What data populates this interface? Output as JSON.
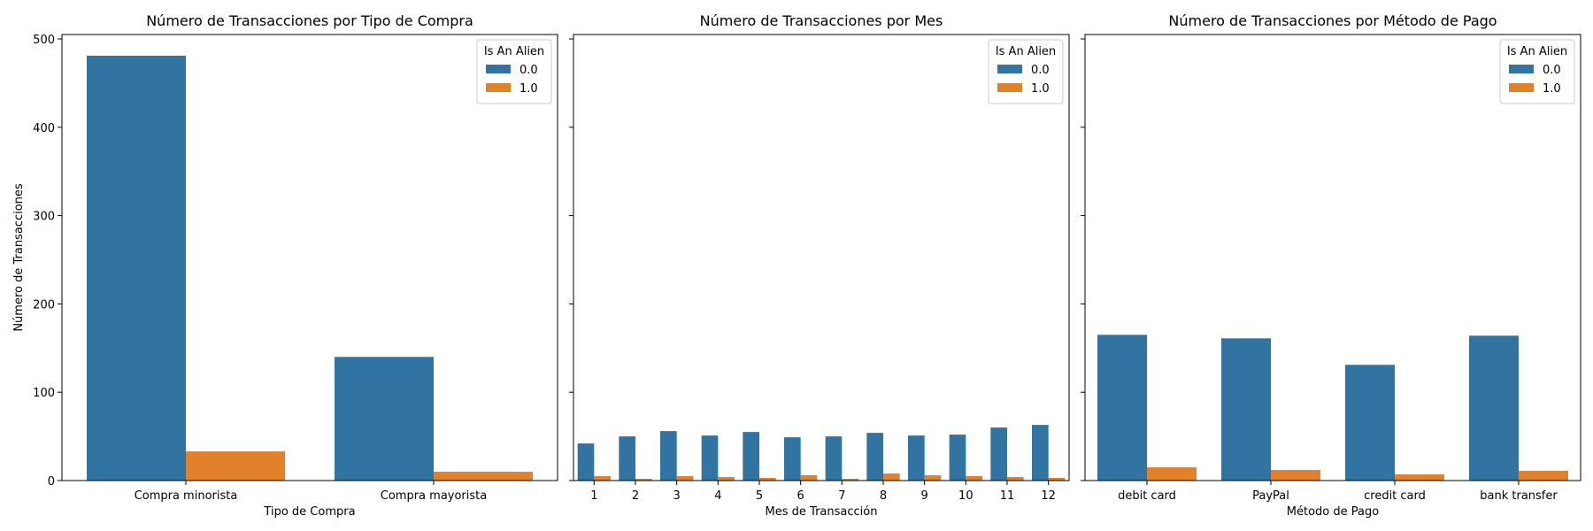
{
  "colors": {
    "series0": "#3274a1",
    "series1": "#e1812c"
  },
  "chart_data": [
    {
      "type": "bar",
      "title": "Número de Transacciones por Tipo de Compra",
      "xlabel": "Tipo de Compra",
      "ylabel": "Número de Transacciones",
      "categories": [
        "Compra minorista",
        "Compra mayorista"
      ],
      "series": [
        {
          "name": "0.0",
          "values": [
            481,
            140
          ]
        },
        {
          "name": "1.0",
          "values": [
            33,
            10
          ]
        }
      ],
      "ylim": [
        0,
        505
      ],
      "yticks": [
        0,
        100,
        200,
        300,
        400,
        500
      ],
      "show_y_tick_labels": true,
      "legend": {
        "title": "Is An Alien",
        "placement": "top-right"
      },
      "grid": false
    },
    {
      "type": "bar",
      "title": "Número de Transacciones por Mes",
      "xlabel": "Mes de Transacción",
      "ylabel": "",
      "categories": [
        "1",
        "2",
        "3",
        "4",
        "5",
        "6",
        "7",
        "8",
        "9",
        "10",
        "11",
        "12"
      ],
      "series": [
        {
          "name": "0.0",
          "values": [
            42,
            50,
            56,
            51,
            55,
            49,
            50,
            54,
            51,
            52,
            60,
            63
          ]
        },
        {
          "name": "1.0",
          "values": [
            5,
            2,
            5,
            4,
            3,
            6,
            2,
            8,
            6,
            5,
            4,
            3
          ]
        }
      ],
      "ylim": [
        0,
        505
      ],
      "yticks": [
        0,
        100,
        200,
        300,
        400,
        500
      ],
      "show_y_tick_labels": false,
      "legend": {
        "title": "Is An Alien",
        "placement": "top-right"
      },
      "grid": false
    },
    {
      "type": "bar",
      "title": "Número de Transacciones por Método de Pago",
      "xlabel": "Método de Pago",
      "ylabel": "",
      "categories": [
        "debit card",
        "PayPal",
        "credit card",
        "bank transfer"
      ],
      "series": [
        {
          "name": "0.0",
          "values": [
            165,
            161,
            131,
            164
          ]
        },
        {
          "name": "1.0",
          "values": [
            15,
            12,
            7,
            11
          ]
        }
      ],
      "ylim": [
        0,
        505
      ],
      "yticks": [
        0,
        100,
        200,
        300,
        400,
        500
      ],
      "show_y_tick_labels": false,
      "legend": {
        "title": "Is An Alien",
        "placement": "top-right"
      },
      "grid": false
    }
  ]
}
